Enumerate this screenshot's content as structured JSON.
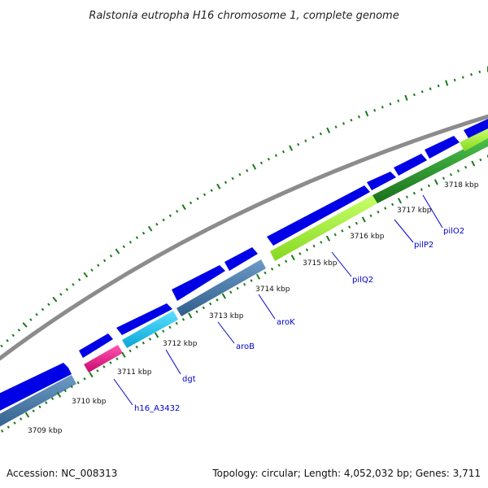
{
  "title": "Ralstonia eutropha H16 chromosome 1, complete genome",
  "footer": {
    "accession": "Accession: NC_008313",
    "summary": "Topology: circular; Length: 4,052,032 bp; Genes: 3,711"
  },
  "ticks": [
    {
      "label": "3709 kbp"
    },
    {
      "label": "3710 kbp"
    },
    {
      "label": "3711 kbp"
    },
    {
      "label": "3712 kbp"
    },
    {
      "label": "3713 kbp"
    },
    {
      "label": "3714 kbp"
    },
    {
      "label": "3715 kbp"
    },
    {
      "label": "3716 kbp"
    },
    {
      "label": "3717 kbp"
    },
    {
      "label": "3718 kbp"
    }
  ],
  "gene_labels": [
    {
      "name": "h16_A3432"
    },
    {
      "name": "dgt"
    },
    {
      "name": "aroB"
    },
    {
      "name": "aroK"
    },
    {
      "name": "pilQ2"
    },
    {
      "name": "pilP2"
    },
    {
      "name": "pilO2"
    }
  ],
  "colors": {
    "backbone": "#888888",
    "cds": "#0000e6",
    "track_steel": "#4a7fb0",
    "track_cyan": "#12c6f2",
    "track_magenta": "#ee1489",
    "track_lime": "#a6f53a",
    "track_green": "#2d9a2d",
    "dots": "#1a7a1a",
    "label": "#0000cc"
  }
}
